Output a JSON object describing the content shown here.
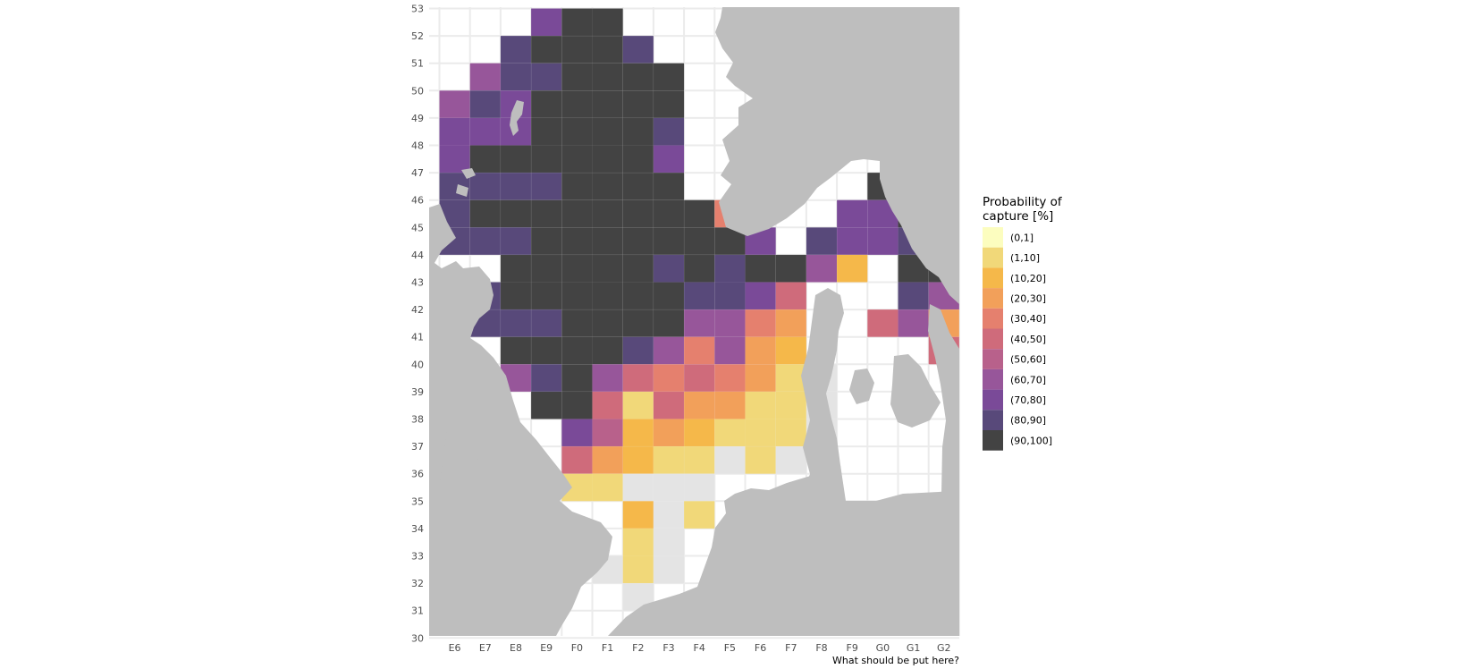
{
  "chart_data": {
    "type": "heatmap",
    "xlabel": "What should be put here?",
    "ylabel": "",
    "x_categories": [
      "E6",
      "E7",
      "E8",
      "E9",
      "F0",
      "F1",
      "F2",
      "F3",
      "F4",
      "F5",
      "F6",
      "F7",
      "F8",
      "F9",
      "G0",
      "G1",
      "G2"
    ],
    "y_ticks": [
      "30",
      "31",
      "32",
      "33",
      "34",
      "35",
      "36",
      "37",
      "38",
      "39",
      "40",
      "41",
      "42",
      "43",
      "44",
      "45",
      "46",
      "47",
      "48",
      "49",
      "50",
      "51",
      "52",
      "53"
    ],
    "grid": true,
    "legend": {
      "position": "right",
      "title_lines": [
        "Probability of",
        "capture [%]"
      ],
      "bins": [
        {
          "label": "(0,1]",
          "color": "#FCFDBF"
        },
        {
          "label": "(1,10]",
          "color": "#F1D879"
        },
        {
          "label": "(10,20]",
          "color": "#F5B84A"
        },
        {
          "label": "(20,30]",
          "color": "#F2A05A"
        },
        {
          "label": "(30,40]",
          "color": "#E5806E"
        },
        {
          "label": "(40,50]",
          "color": "#CF6B7B"
        },
        {
          "label": "(50,60]",
          "color": "#B8618B"
        },
        {
          "label": "(60,70]",
          "color": "#97569A"
        },
        {
          "label": "(70,80]",
          "color": "#7A4A98"
        },
        {
          "label": "(80,90]",
          "color": "#58497A"
        },
        {
          "label": "(90,100]",
          "color": "#434343"
        }
      ],
      "no_catch_color": "#E4E4E4"
    },
    "land_color": "#BEBEBE",
    "rows": [
      {
        "y": 52,
        "x_start": 3,
        "cells": [
          "(70,80]",
          "(90,100]",
          "(90,100]"
        ]
      },
      {
        "y": 51,
        "x_start": 2,
        "cells": [
          "(80,90]",
          "(90,100]",
          "(90,100]",
          "(90,100]",
          "(80,90]"
        ]
      },
      {
        "y": 50,
        "x_start": 1,
        "cells": [
          "(60,70]",
          "(80,90]",
          "(80,90]",
          "(90,100]",
          "(90,100]",
          "(90,100]",
          "(90,100]"
        ]
      },
      {
        "y": 49,
        "x_start": 0,
        "cells": [
          "(60,70]",
          "(80,90]",
          "(70,80]",
          "(90,100]",
          "(90,100]",
          "(90,100]",
          "(90,100]",
          "(90,100]"
        ]
      },
      {
        "y": 48,
        "x_start": 0,
        "cells": [
          "(70,80]",
          "(70,80]",
          "(70,80]",
          "(90,100]",
          "(90,100]",
          "(90,100]",
          "(90,100]",
          "(80,90]"
        ]
      },
      {
        "y": 47,
        "x_start": 0,
        "cells": [
          "(70,80]",
          "(90,100]",
          "(90,100]",
          "(90,100]",
          "(90,100]",
          "(90,100]",
          "(90,100]",
          "(70,80]"
        ]
      },
      {
        "y": 46,
        "x_start": 0,
        "cells": [
          "(80,90]",
          "(80,90]",
          "(80,90]",
          "(80,90]",
          "(90,100]",
          "(90,100]",
          "(90,100]",
          "(90,100]",
          null,
          null,
          null,
          null,
          null,
          null,
          "(90,100]"
        ]
      },
      {
        "y": 45,
        "x_start": 0,
        "cells": [
          "(80,90]",
          "(90,100]",
          "(90,100]",
          "(90,100]",
          "(90,100]",
          "(90,100]",
          "(90,100]",
          "(90,100]",
          "(90,100]",
          "(30,40]",
          null,
          null,
          null,
          "(70,80]",
          "(70,80]",
          "(90,100]"
        ]
      },
      {
        "y": 44,
        "x_start": 0,
        "cells": [
          "(80,90]",
          "(80,90]",
          "(80,90]",
          "(90,100]",
          "(90,100]",
          "(90,100]",
          "(90,100]",
          "(90,100]",
          "(90,100]",
          "(90,100]",
          "(70,80]",
          null,
          "(80,90]",
          "(70,80]",
          "(70,80]",
          "(80,90]"
        ]
      },
      {
        "y": 43,
        "x_start": 2,
        "cells": [
          "(90,100]",
          "(90,100]",
          "(90,100]",
          "(90,100]",
          "(90,100]",
          "(80,90]",
          "(90,100]",
          "(80,90]",
          "(90,100]",
          "(90,100]",
          "(60,70]",
          "(10,20]",
          null,
          "(90,100]",
          "(90,100]"
        ]
      },
      {
        "y": 42,
        "x_start": 1,
        "cells": [
          "(80,90]",
          "(90,100]",
          "(90,100]",
          "(90,100]",
          "(90,100]",
          "(90,100]",
          "(90,100]",
          "(80,90]",
          "(80,90]",
          "(70,80]",
          "(40,50]",
          null,
          null,
          null,
          "(80,90]",
          "(60,70]"
        ]
      },
      {
        "y": 41,
        "x_start": 1,
        "cells": [
          "(80,90]",
          "(80,90]",
          "(80,90]",
          "(90,100]",
          "(90,100]",
          "(90,100]",
          "(90,100]",
          "(60,70]",
          "(60,70]",
          "(30,40]",
          "(20,30]",
          null,
          null,
          "(40,50]",
          "(60,70]",
          "(20,30]"
        ]
      },
      {
        "y": 40,
        "x_start": 2,
        "cells": [
          "(90,100]",
          "(90,100]",
          "(90,100]",
          "(90,100]",
          "(80,90]",
          "(60,70]",
          "(30,40]",
          "(60,70]",
          "(20,30]",
          "(10,20]",
          null,
          null,
          null,
          null,
          "(40,50]"
        ]
      },
      {
        "y": 39,
        "x_start": 2,
        "cells": [
          "(60,70]",
          "(80,90]",
          "(90,100]",
          "(60,70]",
          "(40,50]",
          "(30,40]",
          "(40,50]",
          "(30,40]",
          "(20,30]",
          "(1,10]",
          "nc"
        ]
      },
      {
        "y": 38,
        "x_start": 3,
        "cells": [
          "(90,100]",
          "(90,100]",
          "(40,50]",
          "(1,10]",
          "(40,50]",
          "(20,30]",
          "(20,30]",
          "(1,10]",
          "(1,10]",
          "nc"
        ]
      },
      {
        "y": 37,
        "x_start": 4,
        "cells": [
          "(70,80]",
          "(50,60]",
          "(10,20]",
          "(20,30]",
          "(10,20]",
          "(1,10]",
          "(1,10]",
          "(1,10]",
          "nc"
        ]
      },
      {
        "y": 36,
        "x_start": 4,
        "cells": [
          "(40,50]",
          "(20,30]",
          "(10,20]",
          "(1,10]",
          "(1,10]",
          "nc",
          "(1,10]",
          "nc"
        ]
      },
      {
        "y": 35,
        "x_start": 4,
        "cells": [
          "(1,10]",
          "(1,10]",
          "nc",
          "nc",
          "nc"
        ]
      },
      {
        "y": 34,
        "x_start": 6,
        "cells": [
          "(10,20]",
          "nc",
          "(1,10]"
        ]
      },
      {
        "y": 33,
        "x_start": 6,
        "cells": [
          "(1,10]",
          "nc"
        ]
      },
      {
        "y": 32,
        "x_start": 5,
        "cells": [
          "nc",
          "(1,10]",
          "nc"
        ]
      },
      {
        "y": 31,
        "x_start": 6,
        "cells": [
          "nc"
        ]
      }
    ]
  }
}
